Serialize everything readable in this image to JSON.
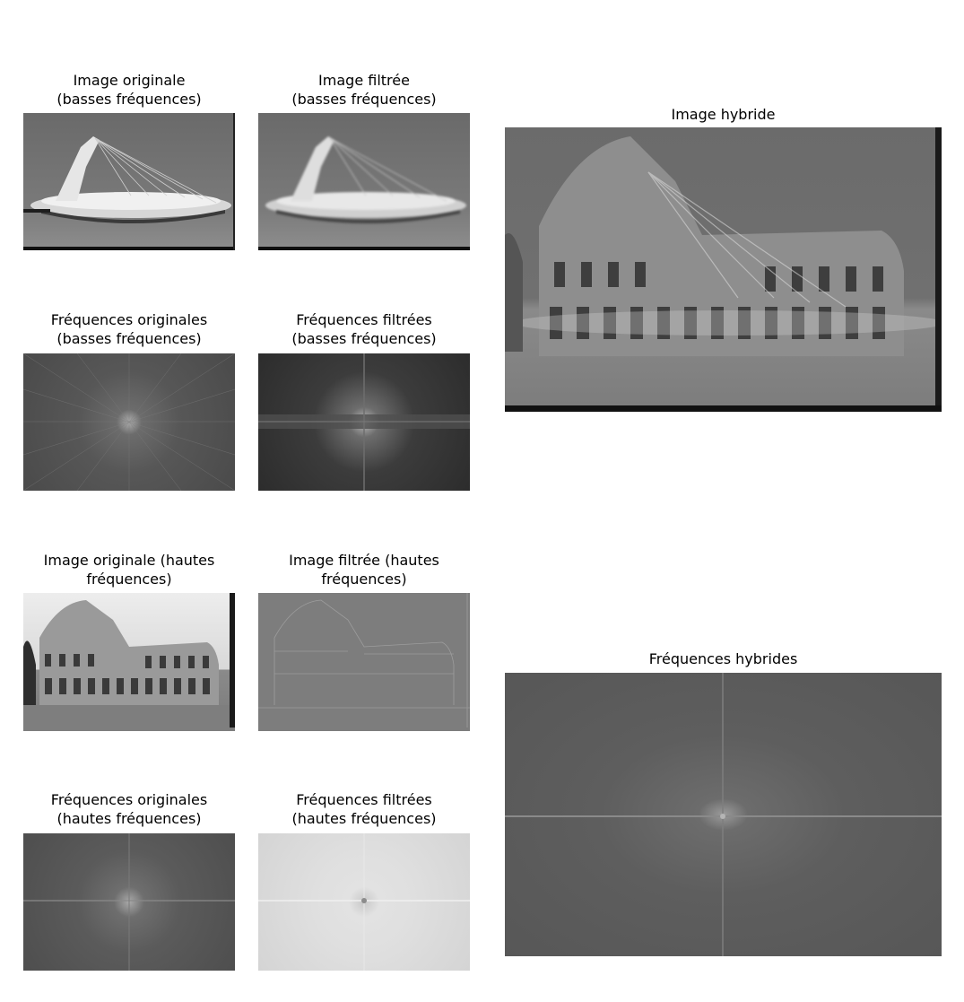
{
  "titles": {
    "orig_low": "Image originale\n(basses fréquences)",
    "filt_low": "Image filtrée\n(basses fréquences)",
    "freq_orig_low": "Fréquences originales\n(basses fréquences)",
    "freq_filt_low": "Fréquences filtrées\n(basses fréquences)",
    "orig_high": "Image originale (hautes\nfréquences)",
    "filt_high": "Image filtrée (hautes\nfréquences)",
    "freq_orig_high": "Fréquences originales\n(hautes fréquences)",
    "freq_filt_high": "Fréquences filtrées\n(hautes fréquences)",
    "hybrid": "Image hybride",
    "hybrid_freq": "Fréquences hybrides"
  }
}
